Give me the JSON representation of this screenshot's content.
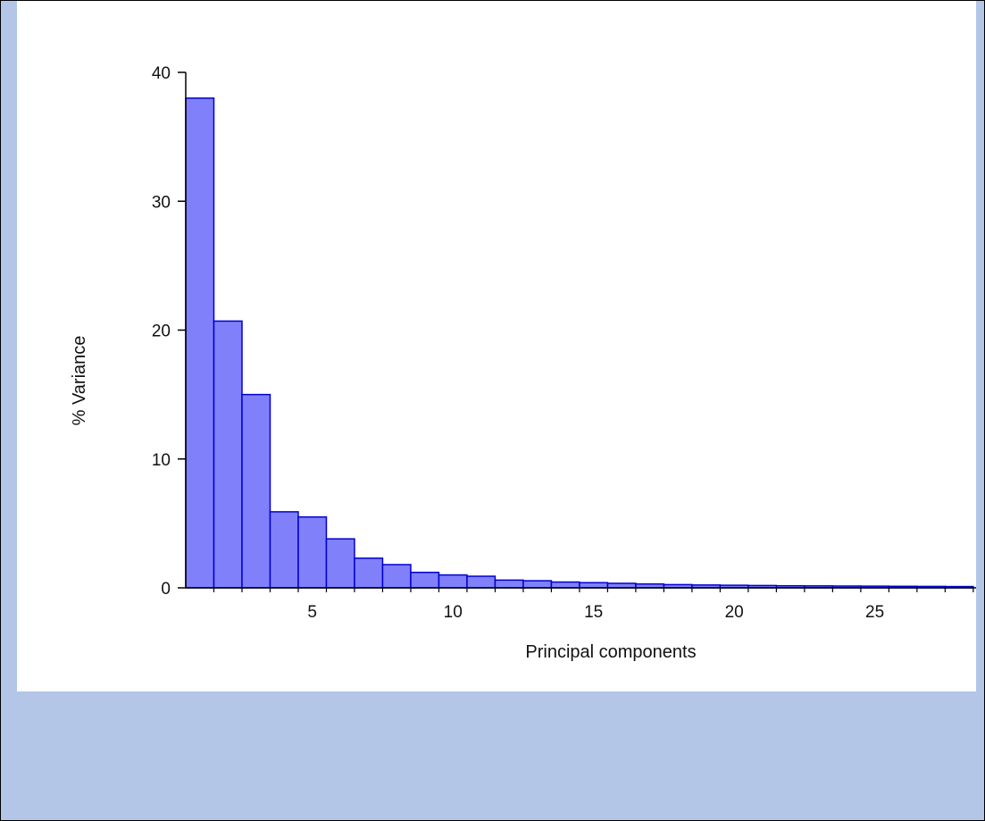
{
  "chart_data": {
    "type": "bar",
    "xlabel": "Principal components",
    "ylabel": "% Variance",
    "x": [
      1,
      2,
      3,
      4,
      5,
      6,
      7,
      8,
      9,
      10,
      11,
      12,
      13,
      14,
      15,
      16,
      17,
      18,
      19,
      20,
      21,
      22,
      23,
      24,
      25,
      26,
      27,
      28
    ],
    "values": [
      38.0,
      20.7,
      15.0,
      5.9,
      5.5,
      3.8,
      2.3,
      1.8,
      1.2,
      1.0,
      0.9,
      0.6,
      0.55,
      0.45,
      0.4,
      0.35,
      0.3,
      0.25,
      0.22,
      0.2,
      0.18,
      0.16,
      0.15,
      0.14,
      0.13,
      0.12,
      0.11,
      0.1
    ],
    "yticks": [
      0,
      10,
      20,
      30,
      40
    ],
    "xticks": [
      5,
      10,
      15,
      20,
      25
    ],
    "ylim": [
      0,
      40
    ],
    "xlim": [
      0.5,
      28.6
    ],
    "grid": false,
    "colors": {
      "bar_fill": "#8080fb",
      "bar_edge": "#0000d0"
    }
  }
}
